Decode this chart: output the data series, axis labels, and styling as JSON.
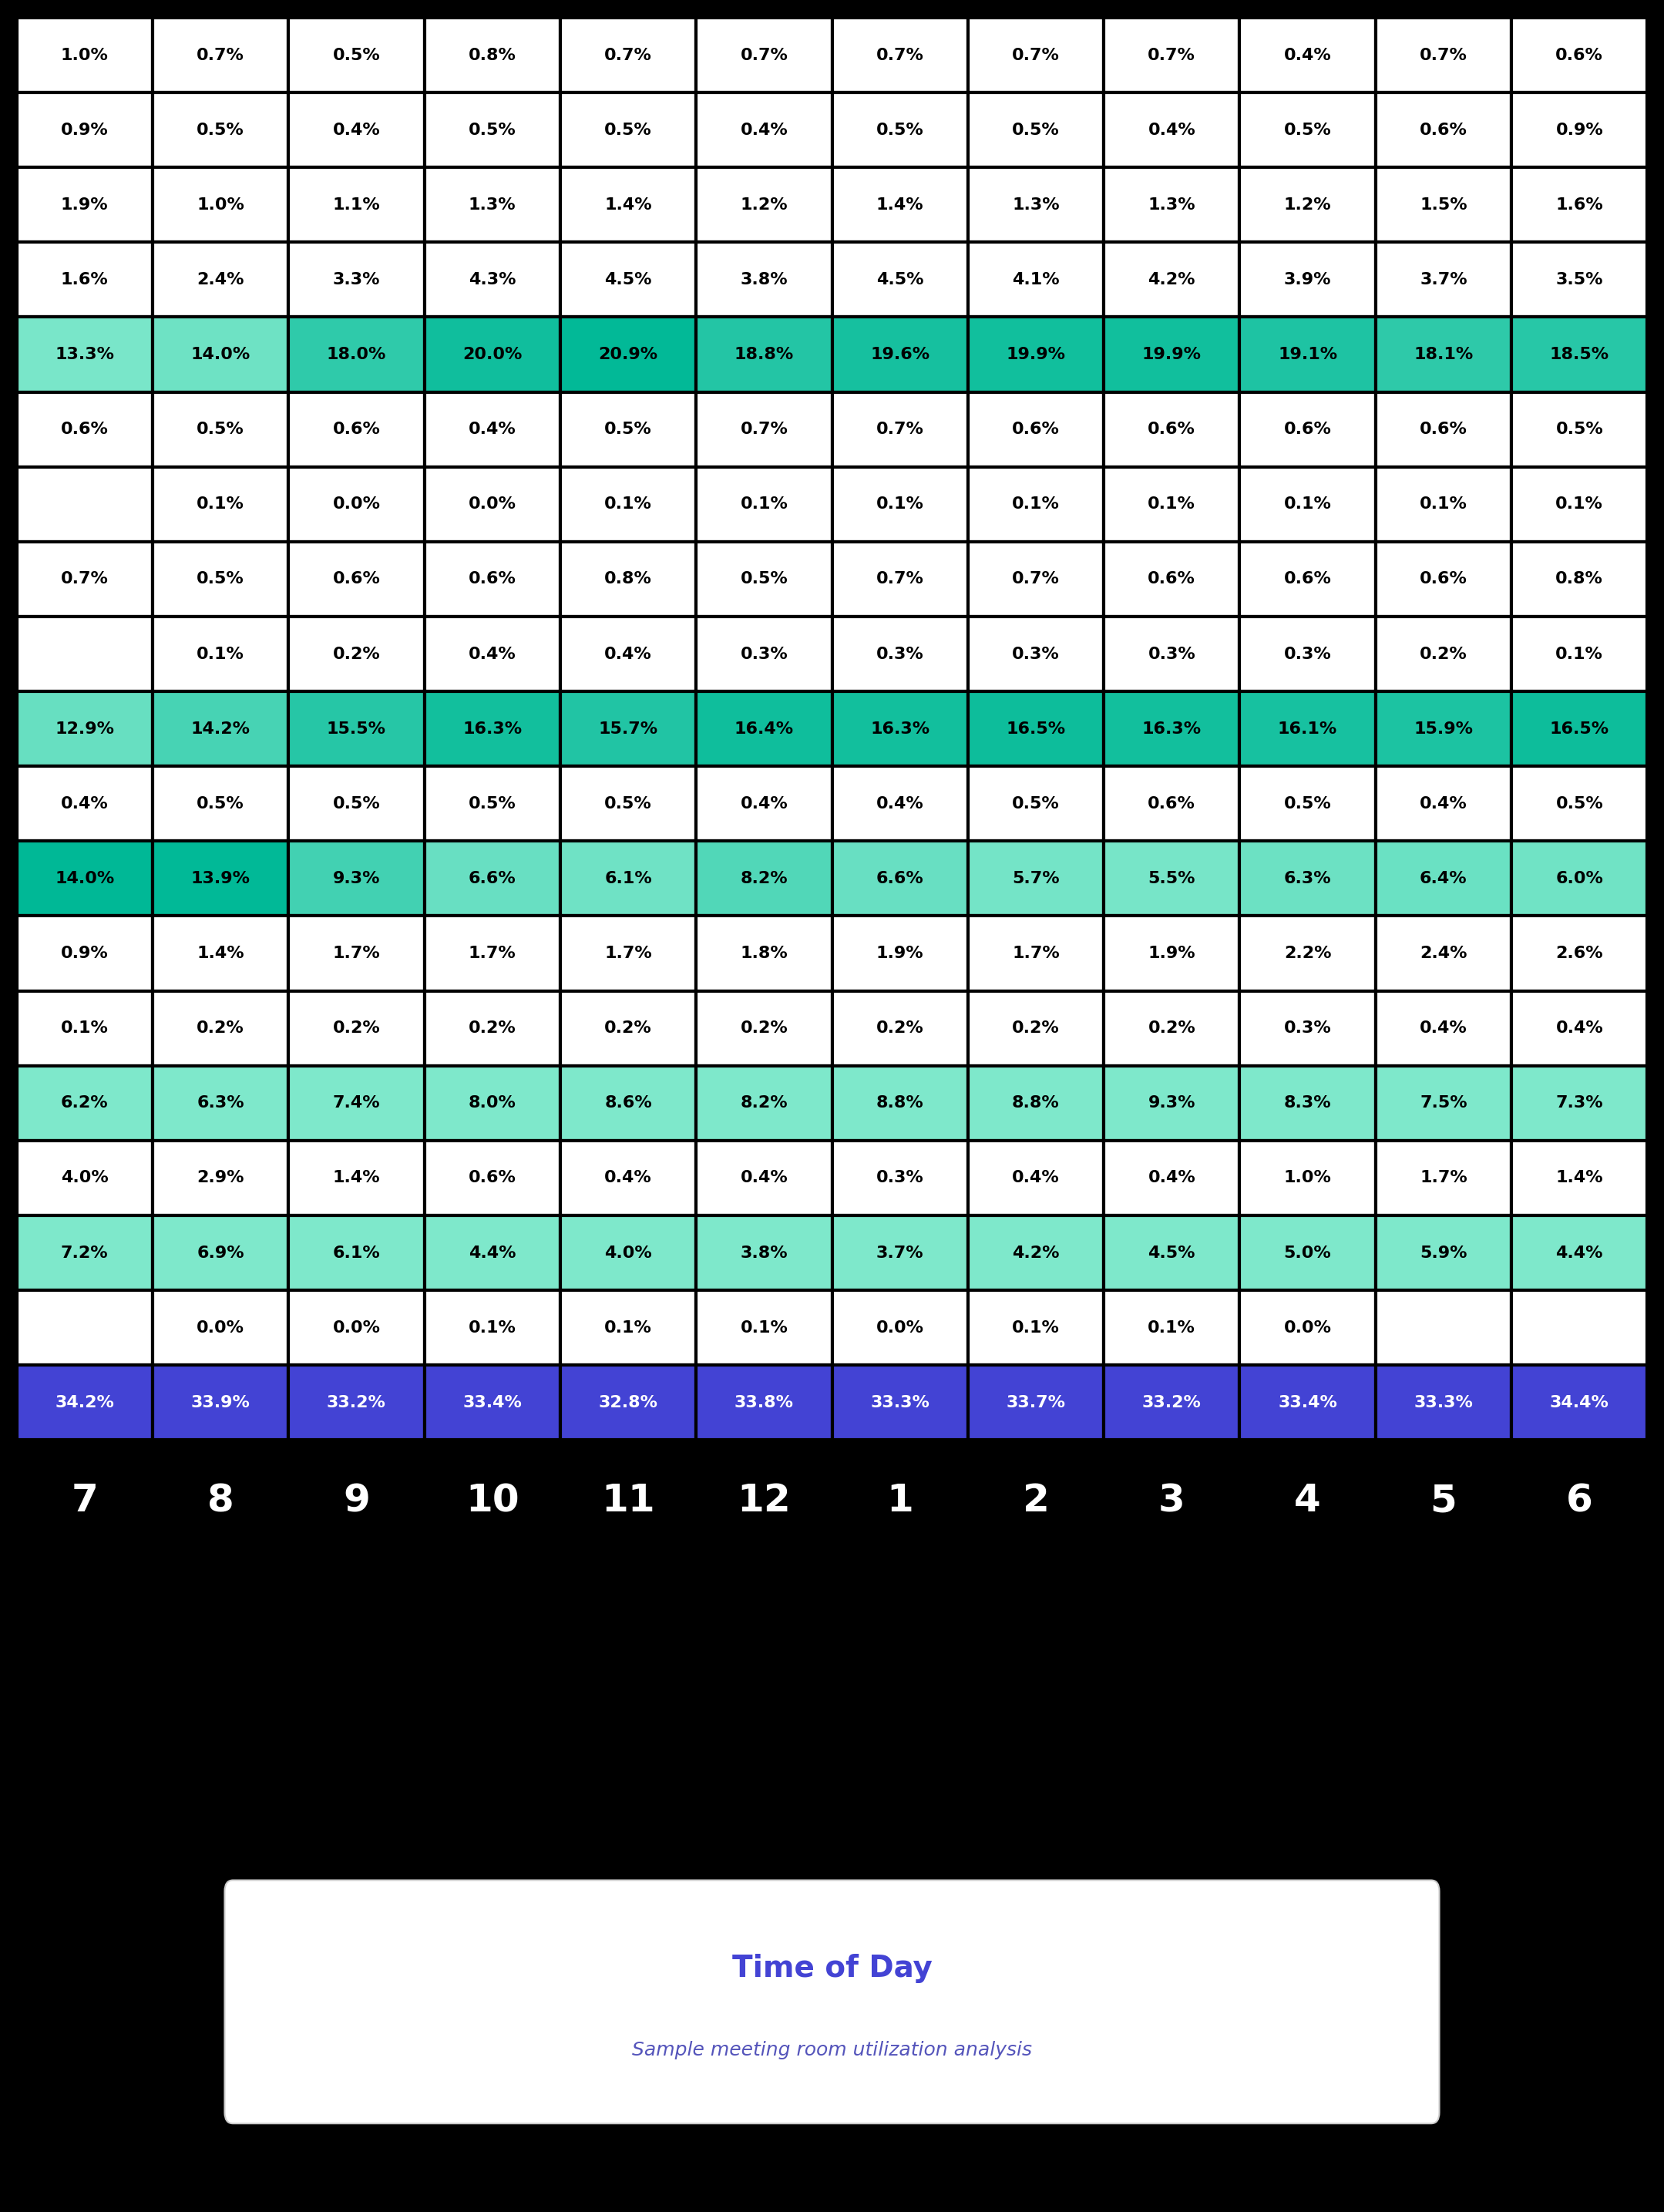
{
  "table_data": [
    [
      "1.0%",
      "0.7%",
      "0.5%",
      "0.8%",
      "0.7%",
      "0.7%",
      "0.7%",
      "0.7%",
      "0.7%",
      "0.4%",
      "0.7%",
      "0.6%"
    ],
    [
      "0.9%",
      "0.5%",
      "0.4%",
      "0.5%",
      "0.5%",
      "0.4%",
      "0.5%",
      "0.5%",
      "0.4%",
      "0.5%",
      "0.6%",
      "0.9%"
    ],
    [
      "1.9%",
      "1.0%",
      "1.1%",
      "1.3%",
      "1.4%",
      "1.2%",
      "1.4%",
      "1.3%",
      "1.3%",
      "1.2%",
      "1.5%",
      "1.6%"
    ],
    [
      "1.6%",
      "2.4%",
      "3.3%",
      "4.3%",
      "4.5%",
      "3.8%",
      "4.5%",
      "4.1%",
      "4.2%",
      "3.9%",
      "3.7%",
      "3.5%"
    ],
    [
      "13.3%",
      "14.0%",
      "18.0%",
      "20.0%",
      "20.9%",
      "18.8%",
      "19.6%",
      "19.9%",
      "19.9%",
      "19.1%",
      "18.1%",
      "18.5%"
    ],
    [
      "0.6%",
      "0.5%",
      "0.6%",
      "0.4%",
      "0.5%",
      "0.7%",
      "0.7%",
      "0.6%",
      "0.6%",
      "0.6%",
      "0.6%",
      "0.5%"
    ],
    [
      "",
      "0.1%",
      "0.0%",
      "0.0%",
      "0.1%",
      "0.1%",
      "0.1%",
      "0.1%",
      "0.1%",
      "0.1%",
      "0.1%",
      "0.1%"
    ],
    [
      "0.7%",
      "0.5%",
      "0.6%",
      "0.6%",
      "0.8%",
      "0.5%",
      "0.7%",
      "0.7%",
      "0.6%",
      "0.6%",
      "0.6%",
      "0.8%"
    ],
    [
      "",
      "0.1%",
      "0.2%",
      "0.4%",
      "0.4%",
      "0.3%",
      "0.3%",
      "0.3%",
      "0.3%",
      "0.3%",
      "0.2%",
      "0.1%"
    ],
    [
      "12.9%",
      "14.2%",
      "15.5%",
      "16.3%",
      "15.7%",
      "16.4%",
      "16.3%",
      "16.5%",
      "16.3%",
      "16.1%",
      "15.9%",
      "16.5%"
    ],
    [
      "0.4%",
      "0.5%",
      "0.5%",
      "0.5%",
      "0.5%",
      "0.4%",
      "0.4%",
      "0.5%",
      "0.6%",
      "0.5%",
      "0.4%",
      "0.5%"
    ],
    [
      "14.0%",
      "13.9%",
      "9.3%",
      "6.6%",
      "6.1%",
      "8.2%",
      "6.6%",
      "5.7%",
      "5.5%",
      "6.3%",
      "6.4%",
      "6.0%"
    ],
    [
      "0.9%",
      "1.4%",
      "1.7%",
      "1.7%",
      "1.7%",
      "1.8%",
      "1.9%",
      "1.7%",
      "1.9%",
      "2.2%",
      "2.4%",
      "2.6%"
    ],
    [
      "0.1%",
      "0.2%",
      "0.2%",
      "0.2%",
      "0.2%",
      "0.2%",
      "0.2%",
      "0.2%",
      "0.2%",
      "0.3%",
      "0.4%",
      "0.4%"
    ],
    [
      "6.2%",
      "6.3%",
      "7.4%",
      "8.0%",
      "8.6%",
      "8.2%",
      "8.8%",
      "8.8%",
      "9.3%",
      "8.3%",
      "7.5%",
      "7.3%"
    ],
    [
      "4.0%",
      "2.9%",
      "1.4%",
      "0.6%",
      "0.4%",
      "0.4%",
      "0.3%",
      "0.4%",
      "0.4%",
      "1.0%",
      "1.7%",
      "1.4%"
    ],
    [
      "7.2%",
      "6.9%",
      "6.1%",
      "4.4%",
      "4.0%",
      "3.8%",
      "3.7%",
      "4.2%",
      "4.5%",
      "5.0%",
      "5.9%",
      "4.4%"
    ],
    [
      "",
      "0.0%",
      "0.0%",
      "0.1%",
      "0.1%",
      "0.1%",
      "0.0%",
      "0.1%",
      "0.1%",
      "0.0%",
      "",
      ""
    ],
    [
      "34.2%",
      "33.9%",
      "33.2%",
      "33.4%",
      "32.8%",
      "33.8%",
      "33.3%",
      "33.7%",
      "33.2%",
      "33.4%",
      "33.3%",
      "34.4%"
    ]
  ],
  "row_types": [
    "white",
    "white",
    "white",
    "white",
    "teal_grad",
    "white",
    "white",
    "white",
    "white",
    "teal_grad",
    "white",
    "teal_grad",
    "white",
    "white",
    "teal_light",
    "white",
    "teal_light",
    "white",
    "blue"
  ],
  "col_labels": [
    "7",
    "8",
    "9",
    "10",
    "11",
    "12",
    "1",
    "2",
    "3",
    "4",
    "5",
    "6"
  ],
  "title": "Time of Day",
  "subtitle": "Sample meeting room utilization analysis",
  "bg_color": "#000000",
  "cell_bg_white": "#ffffff",
  "cell_bg_teal_dark": "#00b896",
  "cell_bg_teal_mid": "#2ecfaa",
  "cell_bg_teal_light": "#7ee8cb",
  "cell_bg_blue": "#4343d4",
  "text_white": "#ffffff",
  "text_black": "#000000",
  "title_color": "#4343d4",
  "subtitle_color": "#5555bb",
  "border_color": "#000000",
  "border_width": 3
}
